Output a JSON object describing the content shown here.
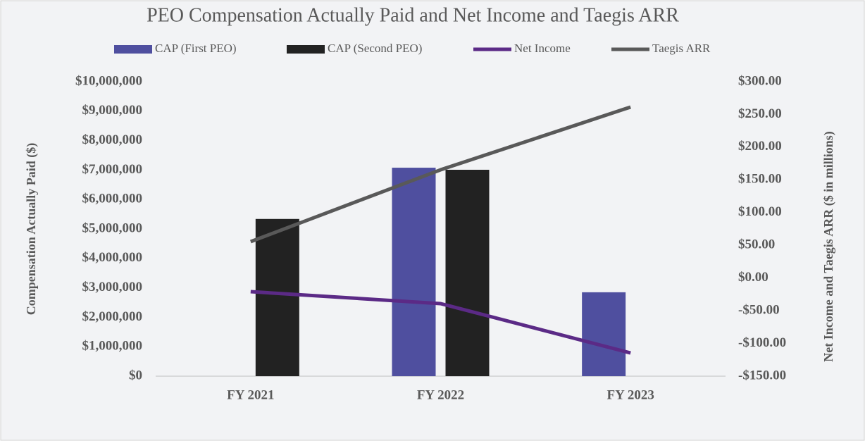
{
  "chart_data": {
    "type": "bar",
    "title": "PEO Compensation Actually Paid and Net Income and Taegis ARR",
    "y_label": "Compensation Actually Paid ($)",
    "y2_label": "Net Income and Taegis ARR ($ in millions)",
    "categories": [
      "FY 2021",
      "FY 2022",
      "FY 2023"
    ],
    "series": [
      {
        "name": "CAP (First PEO)",
        "color": "#4f4f9f",
        "type": "bar",
        "values": [
          null,
          7080000,
          2850000
        ]
      },
      {
        "name": "CAP (Second PEO)",
        "color": "#222222",
        "type": "bar",
        "values": [
          5340000,
          7010000,
          null
        ]
      },
      {
        "name": "Net Income",
        "color": "#5b2a86",
        "type": "line",
        "axis": "y2",
        "values": [
          -20.8,
          -39.1,
          -114.5
        ]
      },
      {
        "name": "Taegis ARR",
        "color": "#595959",
        "type": "line",
        "axis": "y2",
        "values": [
          55.6,
          165.4,
          261.3
        ]
      }
    ],
    "ylim": [
      0,
      10000000
    ],
    "yticks": [
      {
        "value": 0,
        "label": "$0"
      },
      {
        "value": 1000000,
        "label": "$1,000,000"
      },
      {
        "value": 2000000,
        "label": "$2,000,000"
      },
      {
        "value": 3000000,
        "label": "$3,000,000"
      },
      {
        "value": 4000000,
        "label": "$4,000,000"
      },
      {
        "value": 5000000,
        "label": "$5,000,000"
      },
      {
        "value": 6000000,
        "label": "$6,000,000"
      },
      {
        "value": 7000000,
        "label": "$7,000,000"
      },
      {
        "value": 8000000,
        "label": "$8,000,000"
      },
      {
        "value": 9000000,
        "label": "$9,000,000"
      },
      {
        "value": 10000000,
        "label": "$10,000,000"
      }
    ],
    "y2lim": [
      -150,
      300
    ],
    "y2ticks": [
      {
        "value": -150,
        "label": "-$150.00"
      },
      {
        "value": -100,
        "label": "-$100.00"
      },
      {
        "value": -50,
        "label": "-$50.00"
      },
      {
        "value": 0,
        "label": "$0.00"
      },
      {
        "value": 50,
        "label": "$50.00"
      },
      {
        "value": 100,
        "label": "$100.00"
      },
      {
        "value": 150,
        "label": "$150.00"
      },
      {
        "value": 200,
        "label": "$200.00"
      },
      {
        "value": 250,
        "label": "$250.00"
      },
      {
        "value": 300,
        "label": "$300.00"
      }
    ],
    "grid": false,
    "legend": "top"
  }
}
